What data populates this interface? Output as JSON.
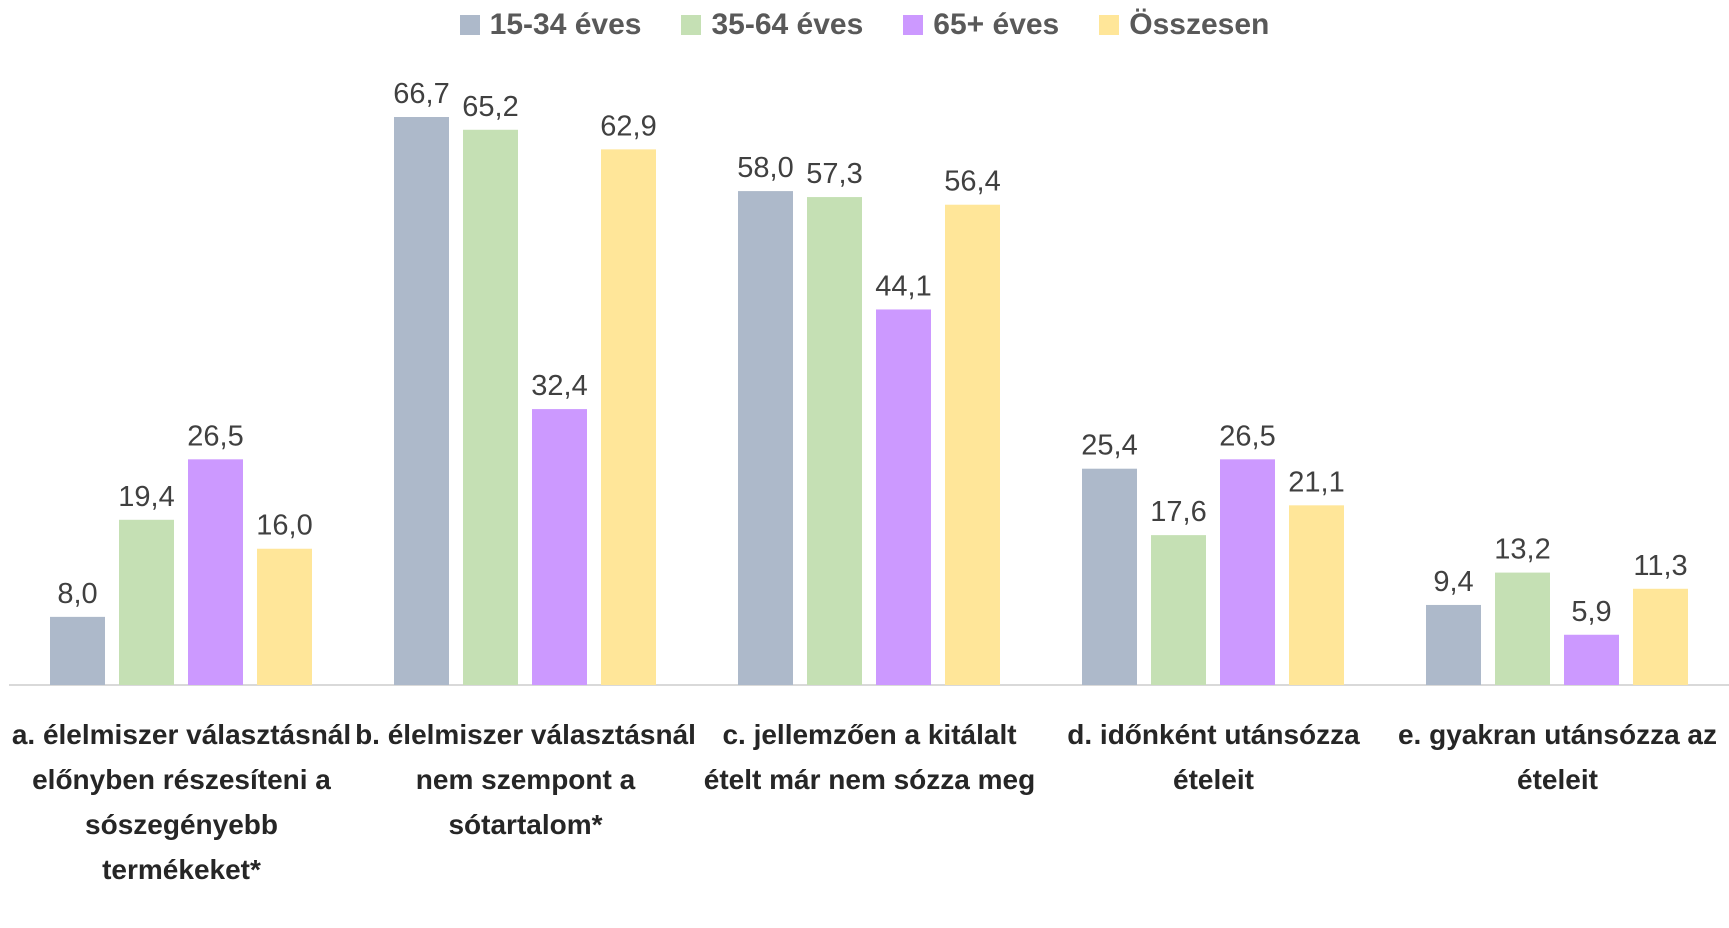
{
  "chart_data": {
    "type": "bar",
    "categories": [
      "a. élelmiszer választásnál előnyben részesíteni a sószegényebb termékeket*",
      "b. élelmiszer választásnál nem szempont a sótartalom*",
      "c. jellemzően a kitálalt ételt már nem sózza meg",
      "d. időnként utánsózza ételeit",
      "e. gyakran utánsózza az ételeit"
    ],
    "series": [
      {
        "name": "15-34 éves",
        "color": "#adb9ca",
        "values": [
          8.0,
          66.7,
          58.0,
          25.4,
          9.4
        ],
        "value_labels": [
          "8,0",
          "66,7",
          "58,0",
          "25,4",
          "9,4"
        ]
      },
      {
        "name": "35-64 éves",
        "color": "#c5e0b4",
        "values": [
          19.4,
          65.2,
          57.3,
          17.6,
          13.2
        ],
        "value_labels": [
          "19,4",
          "65,2",
          "57,3",
          "17,6",
          "13,2"
        ]
      },
      {
        "name": "65+ éves",
        "color": "#cc99ff",
        "values": [
          26.5,
          32.4,
          44.1,
          26.5,
          5.9
        ],
        "value_labels": [
          "26,5",
          "32,4",
          "44,1",
          "26,5",
          "5,9"
        ]
      },
      {
        "name": "Összesen",
        "color": "#ffe699",
        "values": [
          16.0,
          62.9,
          56.4,
          21.1,
          11.3
        ],
        "value_labels": [
          "16,0",
          "62,9",
          "56,4",
          "21,1",
          "11,3"
        ]
      }
    ],
    "legend": "top"
  }
}
